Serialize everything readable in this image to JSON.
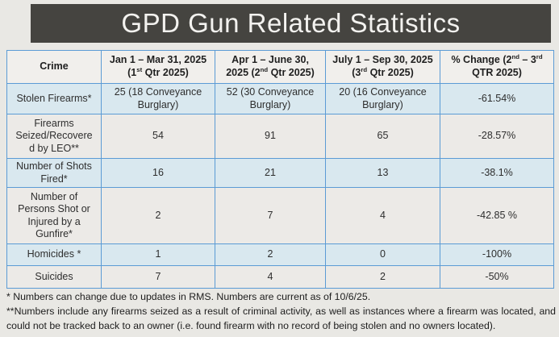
{
  "theme": {
    "page_bg": "#e9e8e4",
    "title_bar": "#454440",
    "title_text": "#f3f2ef",
    "border": "#5b9bd5",
    "header_bg": "#f1efec",
    "band_blue": "#d9e8ef",
    "band_gray": "#eceae7",
    "text": "#2e2e2e",
    "note_text": "#1d1d1d"
  },
  "title": "GPD Gun Related Statistics",
  "table": {
    "columns": [
      "Crime",
      "Jan 1 – Mar 31, 2025\n(1^{st} Qtr 2025)",
      "Apr 1 – June 30,\n2025 (2^{nd} Qtr 2025)",
      "July 1 – Sep 30, 2025\n(3^{rd} Qtr 2025)",
      "% Change (2^{nd} – 3^{rd}\nQTR 2025)"
    ],
    "rows": [
      {
        "crime": "Stolen Firearms*",
        "q1": "25 (18 Conveyance\nBurglary)",
        "q2": "52 (30 Conveyance\nBurglary)",
        "q3": "20 (16 Conveyance\nBurglary)",
        "change": "-61.54%"
      },
      {
        "crime": "Firearms\nSeized/Recovere\nd by LEO**",
        "q1": "54",
        "q2": "91",
        "q3": "65",
        "change": "-28.57%"
      },
      {
        "crime": "Number of Shots\nFired*",
        "q1": "16",
        "q2": "21",
        "q3": "13",
        "change": "-38.1%"
      },
      {
        "crime": "Number of\nPersons Shot or\nInjured by a\nGunfire*",
        "q1": "2",
        "q2": "7",
        "q3": "4",
        "change": "-42.85 %"
      },
      {
        "crime": "Homicides *",
        "q1": "1",
        "q2": "2",
        "q3": "0",
        "change": "-100%"
      },
      {
        "crime": "Suicides",
        "q1": "7",
        "q2": "4",
        "q3": "2",
        "change": "-50%"
      }
    ]
  },
  "footnotes": {
    "note1": "* Numbers can change due to updates in RMS. Numbers are current as of 10/6/25.",
    "note2": "**Numbers include any firearms seized as a result of criminal activity, as well as instances where a firearm was located, and could not be tracked back to an owner (i.e. found firearm with no record of being stolen and no owners located)."
  }
}
